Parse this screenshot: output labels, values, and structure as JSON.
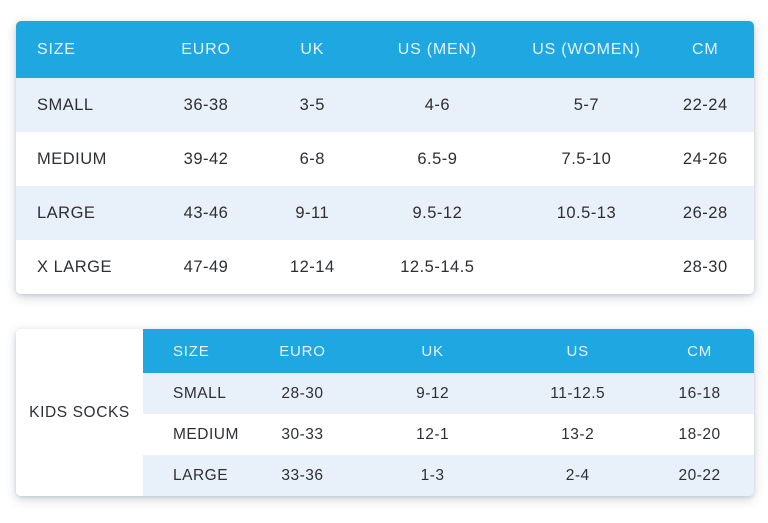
{
  "colors": {
    "page_bg": "#ffffff",
    "header_bg": "#1fa7e1",
    "header_text": "#e2f3fc",
    "row_alt_bg": "#e8f1f9",
    "row_bg": "#ffffff",
    "body_text": "#2d2f32"
  },
  "chart_data": [
    {
      "type": "table",
      "name": "adult-sock-size-chart",
      "columns": [
        "SIZE",
        "EURO",
        "UK",
        "US (MEN)",
        "US (WOMEN)",
        "CM"
      ],
      "rows": [
        [
          "SMALL",
          "36-38",
          "3-5",
          "4-6",
          "5-7",
          "22-24"
        ],
        [
          "MEDIUM",
          "39-42",
          "6-8",
          "6.5-9",
          "7.5-10",
          "24-26"
        ],
        [
          "LARGE",
          "43-46",
          "9-11",
          "9.5-12",
          "10.5-13",
          "26-28"
        ],
        [
          "X LARGE",
          "47-49",
          "12-14",
          "12.5-14.5",
          "",
          "28-30"
        ]
      ]
    },
    {
      "type": "table",
      "name": "kids-sock-size-chart",
      "label": "KIDS SOCKS",
      "columns": [
        "SIZE",
        "EURO",
        "UK",
        "US",
        "CM"
      ],
      "rows": [
        [
          "SMALL",
          "28-30",
          "9-12",
          "11-12.5",
          "16-18"
        ],
        [
          "MEDIUM",
          "30-33",
          "12-1",
          "13-2",
          "18-20"
        ],
        [
          "LARGE",
          "33-36",
          "1-3",
          "2-4",
          "20-22"
        ]
      ]
    }
  ]
}
